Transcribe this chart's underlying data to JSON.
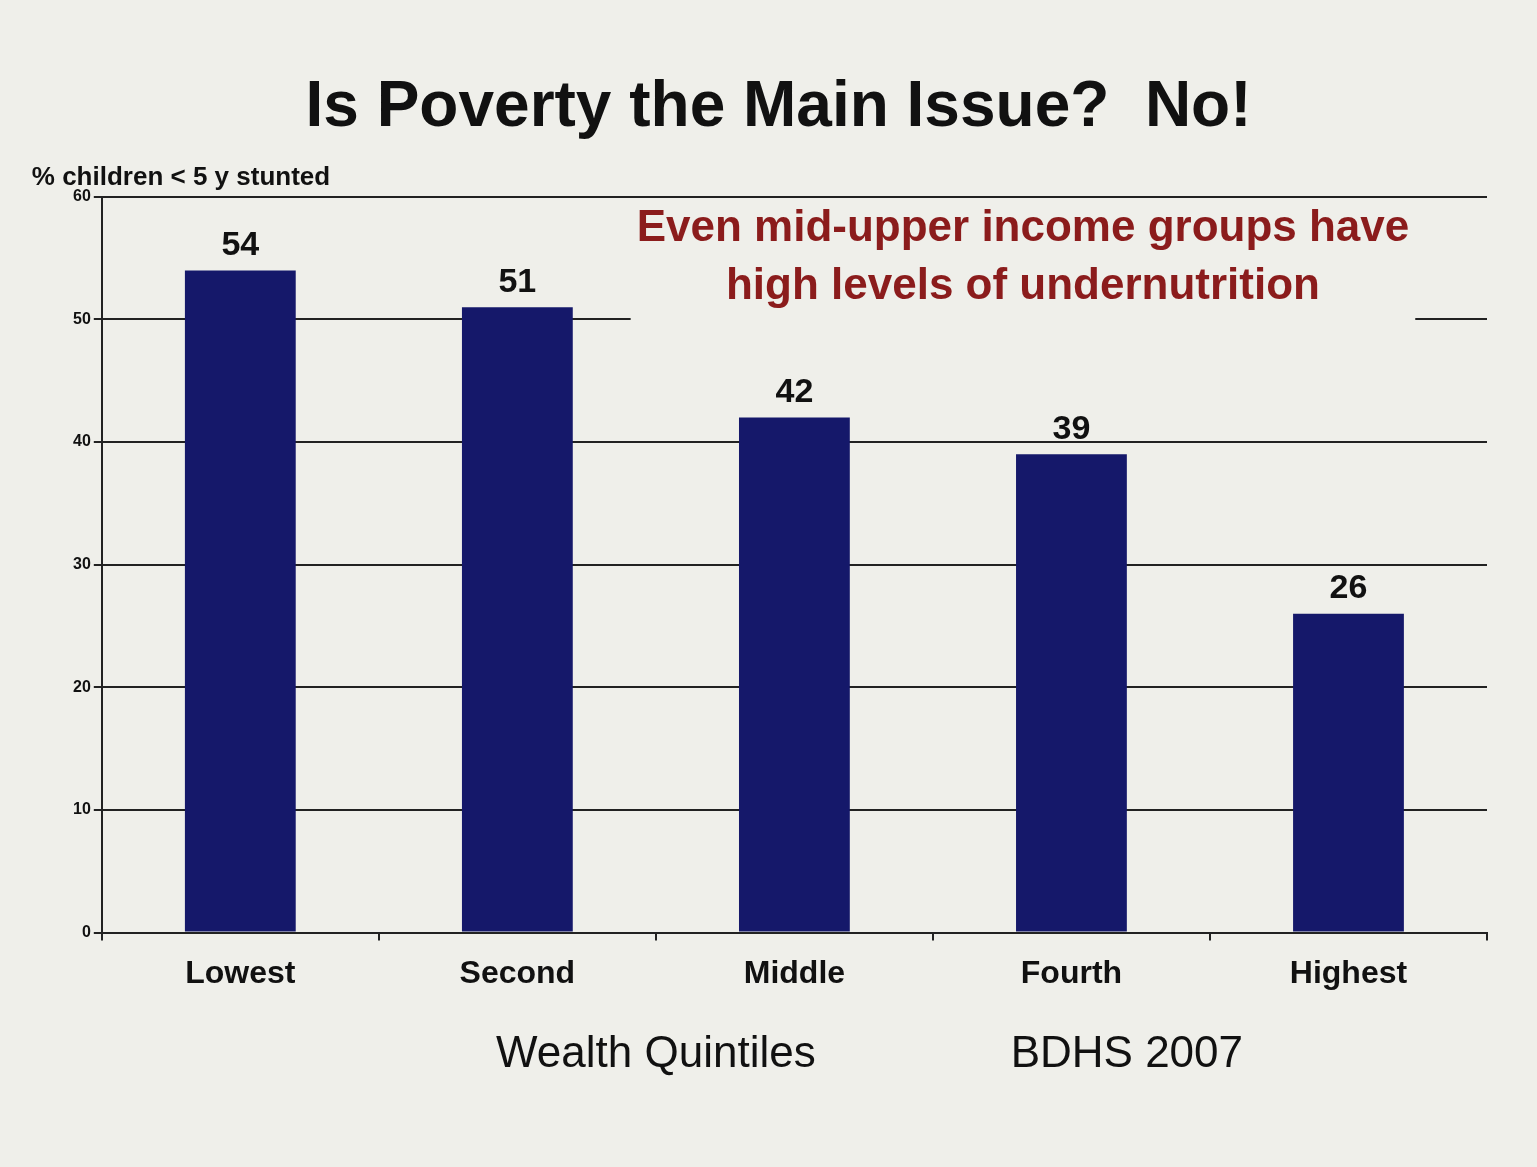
{
  "chart_data": {
    "type": "bar",
    "title": "Is Poverty the Main Issue?  No!",
    "ylabel": "% children < 5 y stunted",
    "xlabel": "Wealth Quintiles",
    "categories": [
      "Lowest",
      "Second",
      "Middle",
      "Fourth",
      "Highest"
    ],
    "values": [
      54,
      51,
      42,
      39,
      26
    ],
    "color": "#15186a",
    "ylim": [
      0,
      60
    ],
    "yticks": [
      0,
      10,
      20,
      30,
      40,
      50,
      60
    ],
    "grid": "y",
    "data_labels": true,
    "legend": false,
    "annotations": [
      "Even mid-upper income groups have high levels of undernutrition",
      "BDHS 2007"
    ]
  }
}
